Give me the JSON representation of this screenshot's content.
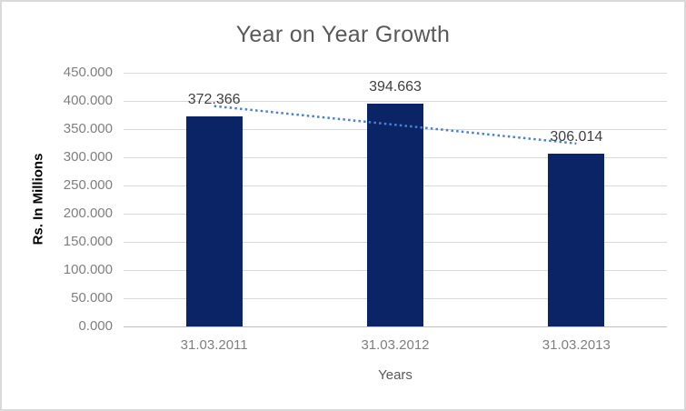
{
  "chart_data": {
    "type": "bar",
    "title": "Year on Year Growth",
    "xlabel": "Years",
    "ylabel": "Rs. In Millions",
    "categories": [
      "31.03.2011",
      "31.03.2012",
      "31.03.2013"
    ],
    "values": [
      372.366,
      394.663,
      306.014
    ],
    "value_labels": [
      "372.366",
      "394.663",
      "306.014"
    ],
    "ylim": [
      0,
      450
    ],
    "ytick_values": [
      0,
      50,
      100,
      150,
      200,
      250,
      300,
      350,
      400,
      450
    ],
    "ytick_labels": [
      "0.000",
      "50.000",
      "100.000",
      "150.000",
      "200.000",
      "250.000",
      "300.000",
      "350.000",
      "400.000",
      "450.000"
    ],
    "grid": true,
    "legend": "none",
    "trendline": {
      "type": "linear",
      "style": "dotted"
    }
  },
  "colors": {
    "bar": "#0b2466",
    "trendline": "#4a80d2",
    "gridline": "#d9d9d9",
    "axis_line": "#bfbfbf",
    "border": "#d9d9d9",
    "title_text": "#595959",
    "tick_text": "#7f7f7f",
    "data_label_text": "#404040",
    "axis_title_text": "#595959",
    "ylabel_text": "#000000"
  }
}
